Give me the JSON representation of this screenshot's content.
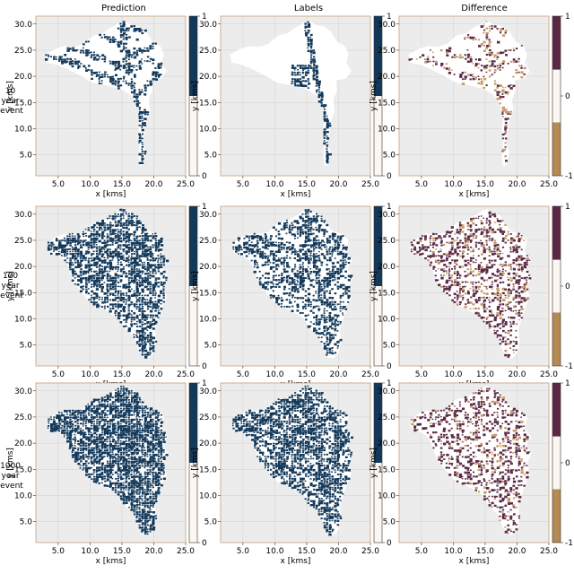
{
  "figure": {
    "columns": [
      "Prediction",
      "Labels",
      "Difference"
    ],
    "rows": [
      {
        "label_lines": [
          "10",
          "year",
          "event"
        ]
      },
      {
        "label_lines": [
          "100",
          "year",
          "event"
        ]
      },
      {
        "label_lines": [
          "1000",
          "year",
          "event"
        ]
      }
    ]
  },
  "chart_data": {
    "type": "heatmap",
    "layout": "3x3 grid of map panels",
    "xlabel": "x [kms]",
    "ylabel": "y [kms]",
    "xlim": [
      1.5,
      25.0
    ],
    "ylim": [
      1.0,
      31.5
    ],
    "xticks": [
      "5.0",
      "10.0",
      "15.0",
      "20.0",
      "25.0"
    ],
    "yticks": [
      "5.0",
      "10.0",
      "15.0",
      "20.0",
      "25.0",
      "30.0"
    ],
    "background_color": "#ececec",
    "grid": true,
    "colorbars": {
      "binary": {
        "ticks": [
          "1",
          "0"
        ],
        "segments": [
          {
            "from": 0,
            "to": 0.5,
            "color": "#fdf7f2"
          },
          {
            "from": 0.5,
            "to": 1,
            "color": "#13395a"
          }
        ]
      },
      "difference": {
        "ticks": [
          "1",
          "0",
          "-1"
        ],
        "segments": [
          {
            "from": -1,
            "to": -0.33,
            "color": "#b48b53"
          },
          {
            "from": -0.33,
            "to": 0.33,
            "color": "#fdf7f2"
          },
          {
            "from": 0.33,
            "to": 1,
            "color": "#5a2a45"
          }
        ]
      }
    },
    "panels": [
      {
        "row": 0,
        "col": 0,
        "colorbar": "binary",
        "wet_color": "#13395a",
        "flood_extent": "sparse river network"
      },
      {
        "row": 0,
        "col": 1,
        "colorbar": "binary",
        "wet_color": "#13395a",
        "flood_extent": "main channel only"
      },
      {
        "row": 0,
        "col": 2,
        "colorbar": "difference",
        "wet_color": "#5a2a45",
        "flood_extent": "sparse network with under-prediction"
      },
      {
        "row": 1,
        "col": 0,
        "colorbar": "binary",
        "wet_color": "#13395a",
        "flood_extent": "dense"
      },
      {
        "row": 1,
        "col": 1,
        "colorbar": "binary",
        "wet_color": "#13395a",
        "flood_extent": "moderate"
      },
      {
        "row": 1,
        "col": 2,
        "colorbar": "difference",
        "wet_color": "#5a2a45",
        "flood_extent": "scattered differences"
      },
      {
        "row": 2,
        "col": 0,
        "colorbar": "binary",
        "wet_color": "#13395a",
        "flood_extent": "very dense"
      },
      {
        "row": 2,
        "col": 1,
        "colorbar": "binary",
        "wet_color": "#13395a",
        "flood_extent": "dense"
      },
      {
        "row": 2,
        "col": 2,
        "colorbar": "difference",
        "wet_color": "#5a2a45",
        "flood_extent": "scattered differences"
      }
    ]
  }
}
